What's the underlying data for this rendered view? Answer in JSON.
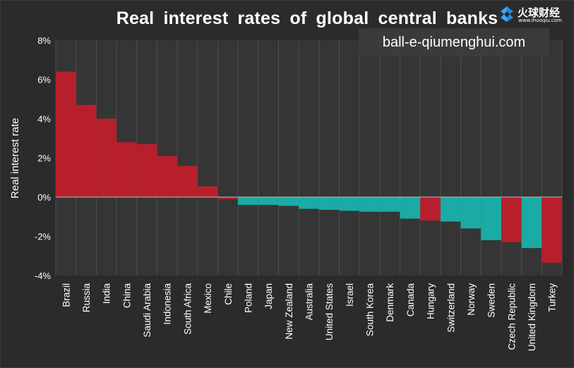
{
  "header": {
    "title": "Real interest rates of global central banks"
  },
  "watermark": {
    "text": "ball-e-qiumenghui.com"
  },
  "logo": {
    "name": "火球财经",
    "url": "www.ihuoqiu.com",
    "icon": "flame-logo-icon",
    "color": "#1e88e5"
  },
  "colors": {
    "positive": "#b71f2b",
    "negative": "#1aaba5",
    "background": "#2b2b2b",
    "grid": "#4e4e4e",
    "text": "#ffffff"
  },
  "chart_data": {
    "type": "bar",
    "title": "Real interest rates of global central banks",
    "ylabel": "Real interest rate",
    "xlabel": "",
    "ylim": [
      -4,
      8
    ],
    "yticks": [
      8,
      6,
      4,
      2,
      0,
      -2,
      -4
    ],
    "ytick_labels": [
      "8%",
      "6%",
      "4%",
      "2%",
      "0%",
      "-2%",
      "-4%"
    ],
    "grid": true,
    "categories": [
      "Brazil",
      "Russia",
      "India",
      "China",
      "Saudi Arabia",
      "Indonesia",
      "South Africa",
      "Mexico",
      "Chile",
      "Poland",
      "Japan",
      "New Zealand",
      "Australia",
      "United States",
      "Israel",
      "South Korea",
      "Denmark",
      "Canada",
      "Hungary",
      "Switzerland",
      "Norway",
      "Sweden",
      "Czech Republic",
      "United Kingdom",
      "Turkey"
    ],
    "values": [
      6.4,
      4.7,
      4.0,
      2.8,
      2.7,
      2.1,
      1.6,
      0.55,
      -0.1,
      -0.4,
      -0.4,
      -0.45,
      -0.6,
      -0.65,
      -0.7,
      -0.75,
      -0.75,
      -1.1,
      -1.2,
      -1.25,
      -1.6,
      -2.2,
      -2.3,
      -2.6,
      -3.35
    ],
    "bar_colors": [
      "#b71f2b",
      "#b71f2b",
      "#b71f2b",
      "#b71f2b",
      "#b71f2b",
      "#b71f2b",
      "#b71f2b",
      "#b71f2b",
      "#b71f2b",
      "#1aaba5",
      "#1aaba5",
      "#1aaba5",
      "#1aaba5",
      "#1aaba5",
      "#1aaba5",
      "#1aaba5",
      "#1aaba5",
      "#1aaba5",
      "#b71f2b",
      "#1aaba5",
      "#1aaba5",
      "#1aaba5",
      "#b71f2b",
      "#1aaba5",
      "#b71f2b"
    ]
  }
}
